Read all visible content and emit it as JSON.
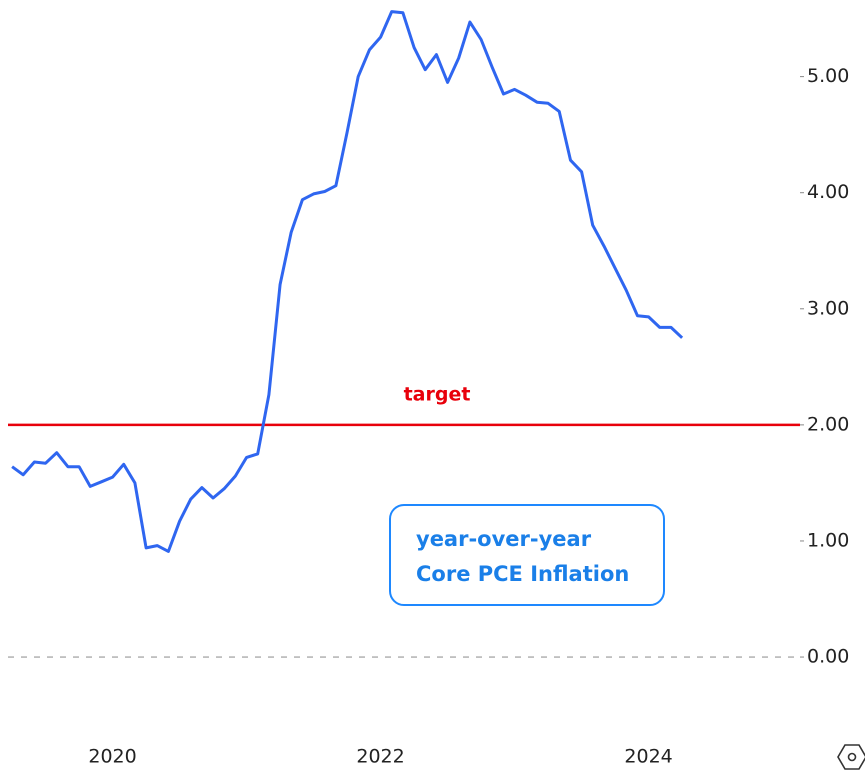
{
  "chart_data": {
    "type": "line",
    "series": [
      {
        "name": "year-over-year Core PCE Inflation",
        "color": "#2f66f0",
        "values": [
          1.64,
          1.57,
          1.68,
          1.67,
          1.76,
          1.64,
          1.64,
          1.47,
          1.51,
          1.55,
          1.66,
          1.5,
          0.94,
          0.96,
          0.91,
          1.17,
          1.36,
          1.46,
          1.37,
          1.45,
          1.56,
          1.72,
          1.75,
          2.26,
          3.21,
          3.66,
          3.94,
          3.99,
          4.01,
          4.06,
          4.52,
          5.0,
          5.23,
          5.34,
          5.56,
          5.55,
          5.25,
          5.06,
          5.19,
          4.95,
          5.16,
          5.47,
          5.32,
          5.08,
          4.85,
          4.89,
          4.84,
          4.78,
          4.77,
          4.7,
          4.28,
          4.18,
          3.72,
          3.54,
          3.35,
          3.16,
          2.94,
          2.93,
          2.84,
          2.84,
          2.75
        ]
      }
    ],
    "x": [
      2019.25,
      2019.333,
      2019.417,
      2019.5,
      2019.583,
      2019.667,
      2019.75,
      2019.833,
      2019.917,
      2020,
      2020.083,
      2020.167,
      2020.25,
      2020.333,
      2020.417,
      2020.5,
      2020.583,
      2020.667,
      2020.75,
      2020.833,
      2020.917,
      2021,
      2021.083,
      2021.167,
      2021.25,
      2021.333,
      2021.417,
      2021.5,
      2021.583,
      2021.667,
      2021.75,
      2021.833,
      2021.917,
      2022,
      2022.083,
      2022.167,
      2022.25,
      2022.333,
      2022.417,
      2022.5,
      2022.583,
      2022.667,
      2022.75,
      2022.833,
      2022.917,
      2023,
      2023.083,
      2023.167,
      2023.25,
      2023.333,
      2023.417,
      2023.5,
      2023.583,
      2023.667,
      2023.75,
      2023.833,
      2023.917,
      2024,
      2024.083,
      2024.167,
      2024.25
    ],
    "xlim": [
      2019.16,
      2025.13
    ],
    "xticks": [
      2020,
      2022,
      2024
    ],
    "ylim": [
      -0.37,
      5.66
    ],
    "yticks": [
      {
        "value": 0,
        "label": "0.00"
      },
      {
        "value": 1,
        "label": "1.00"
      },
      {
        "value": 2,
        "label": "2.00"
      },
      {
        "value": 3,
        "label": "3.00"
      },
      {
        "value": 4,
        "label": "4.00"
      },
      {
        "value": 5,
        "label": "5.00"
      }
    ],
    "zero_line": true,
    "target": {
      "label": "target",
      "value": 2,
      "color": "#e8000b"
    },
    "annotations": [
      "year-over-year",
      "Core PCE Inflation"
    ]
  }
}
